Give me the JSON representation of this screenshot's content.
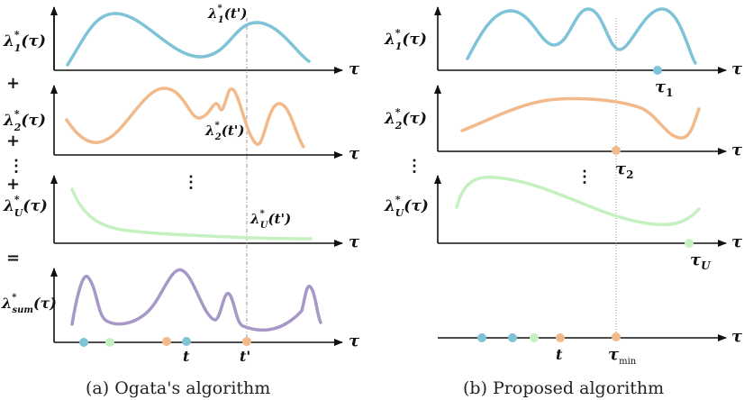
{
  "panel_a": {
    "caption": "(a) Ogata's algorithm",
    "rows": [
      {
        "label": "λ",
        "sup": "*",
        "sub": "1",
        "arg": "(τ)"
      },
      {
        "label": "λ",
        "sup": "*",
        "sub": "2",
        "arg": "(τ)"
      },
      {
        "label": "λ",
        "sup": "*",
        "sub": "U",
        "arg": "(τ)"
      },
      {
        "label": "λ",
        "sup": "*",
        "sub": "sum",
        "arg": "(τ)"
      }
    ],
    "operators": {
      "plus": "+",
      "equals": "="
    },
    "vdots": "⋮",
    "annotations": [
      {
        "label": "λ",
        "sup": "*",
        "sub": "1",
        "arg": "(t')"
      },
      {
        "label": "λ",
        "sup": "*",
        "sub": "2",
        "arg": "(t')"
      },
      {
        "label": "λ",
        "sup": "*",
        "sub": "U",
        "arg": "(t')"
      }
    ],
    "axis_label": "τ",
    "timeline_labels": {
      "t": "t",
      "t_prime": "t'"
    }
  },
  "panel_b": {
    "caption": "(b) Proposed algorithm",
    "rows": [
      {
        "label": "λ",
        "sup": "*",
        "sub": "1",
        "arg": "(τ)",
        "marker": "τ",
        "marker_sub": "1"
      },
      {
        "label": "λ",
        "sup": "*",
        "sub": "2",
        "arg": "(τ)",
        "marker": "τ",
        "marker_sub": "2"
      },
      {
        "label": "λ",
        "sup": "*",
        "sub": "U",
        "arg": "(τ)",
        "marker": "τ",
        "marker_sub": "U"
      }
    ],
    "vdots": "⋮",
    "axis_label": "τ",
    "timeline_labels": {
      "t": "t",
      "tau_min": "τ",
      "tau_min_sub": "min"
    }
  },
  "colors": {
    "blue": "#7ec3d8",
    "orange": "#f2b98a",
    "green": "#c5f0c0",
    "purple": "#a898c8",
    "axis": "#111111",
    "guide": "#999999"
  }
}
